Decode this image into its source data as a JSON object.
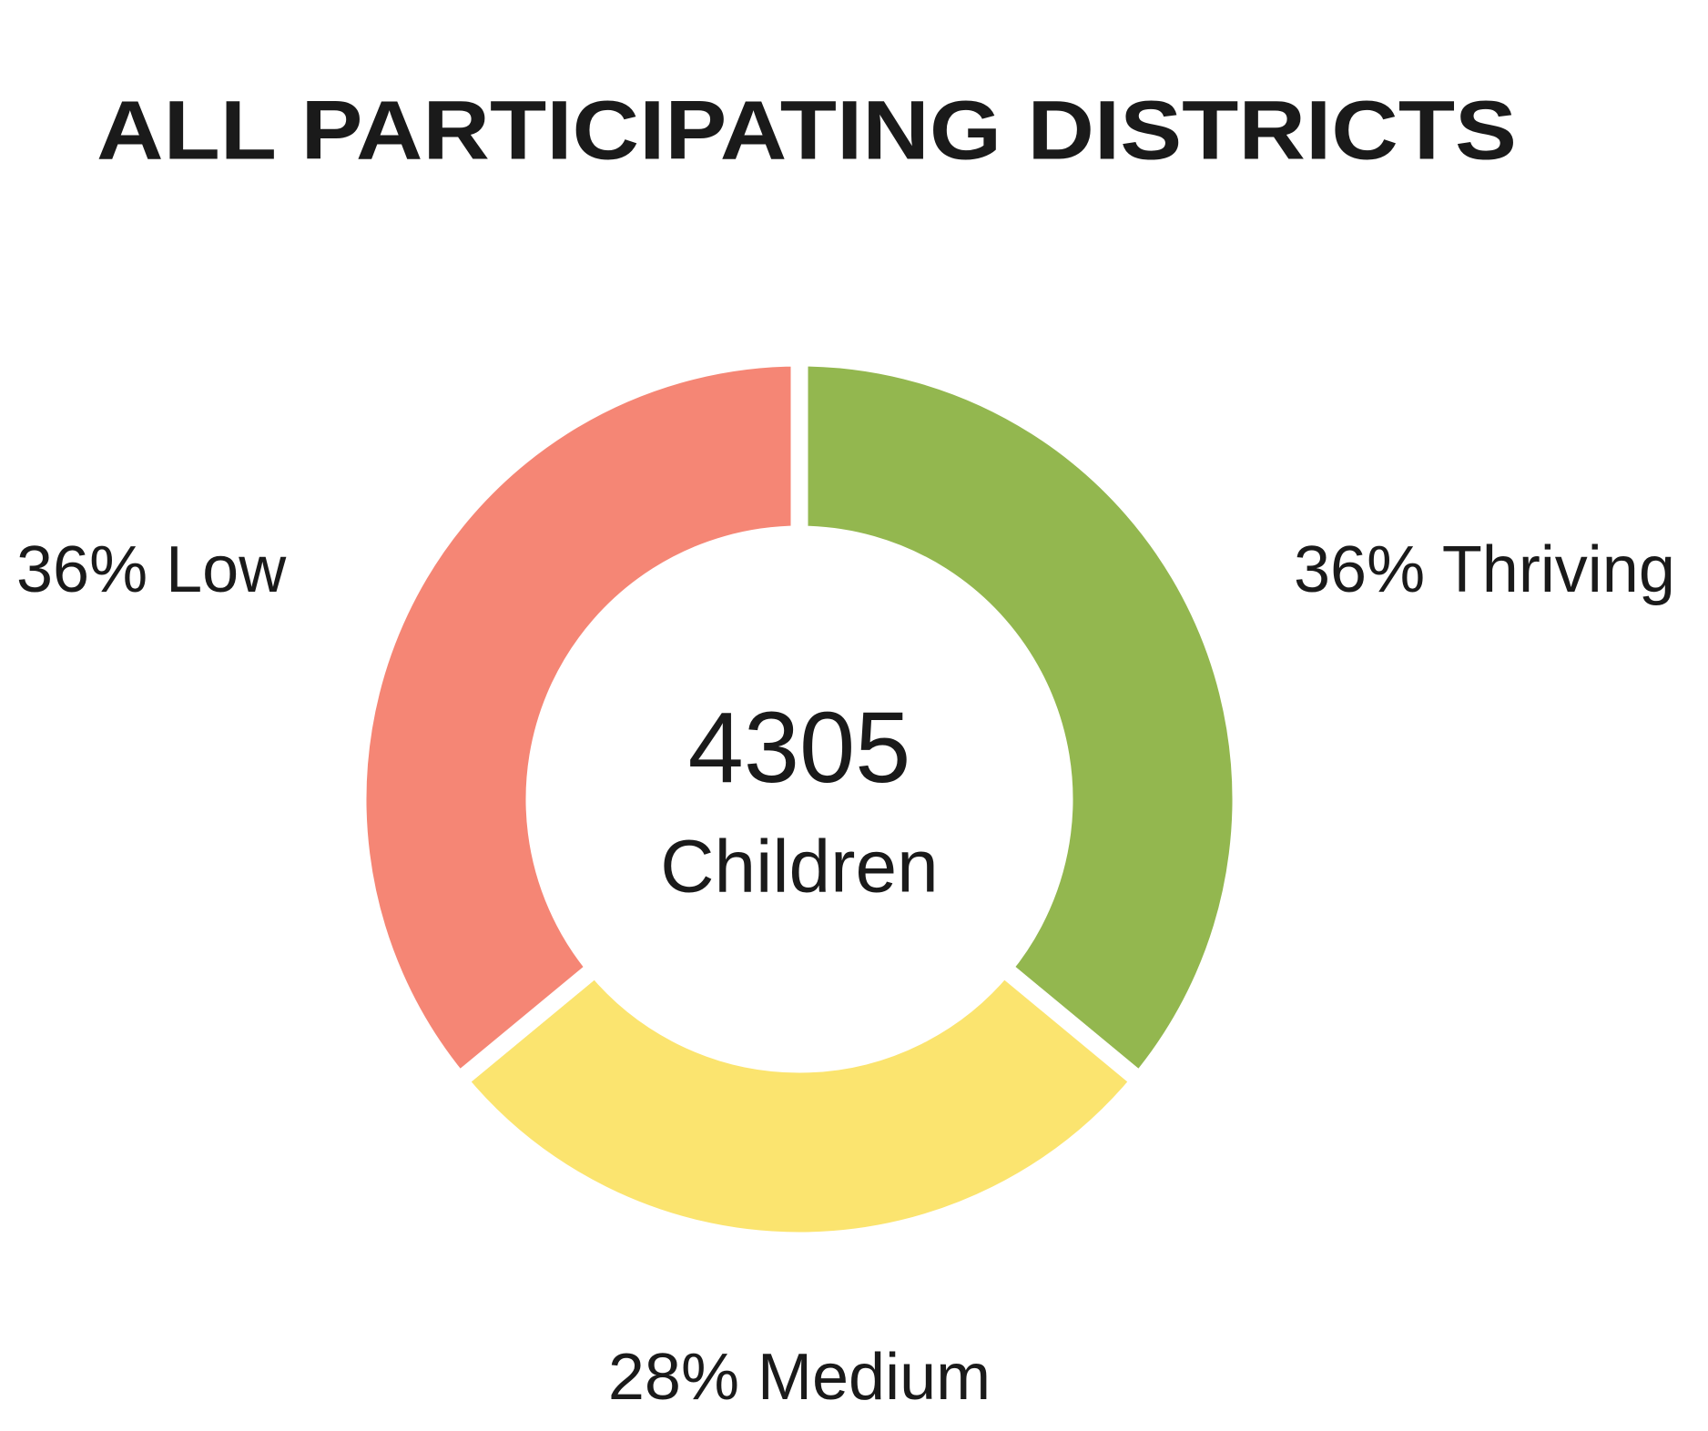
{
  "chart_data": {
    "type": "pie",
    "title": "ALL PARTICIPATING DISTRICTS",
    "categories": [
      "Thriving",
      "Medium",
      "Low"
    ],
    "values": [
      36,
      28,
      36
    ],
    "value_labels": [
      "36%",
      "28%",
      "36%"
    ],
    "colors": [
      "#93b74f",
      "#fbe46f",
      "#f58675"
    ],
    "center_value": 4305,
    "center_label": "Children"
  }
}
